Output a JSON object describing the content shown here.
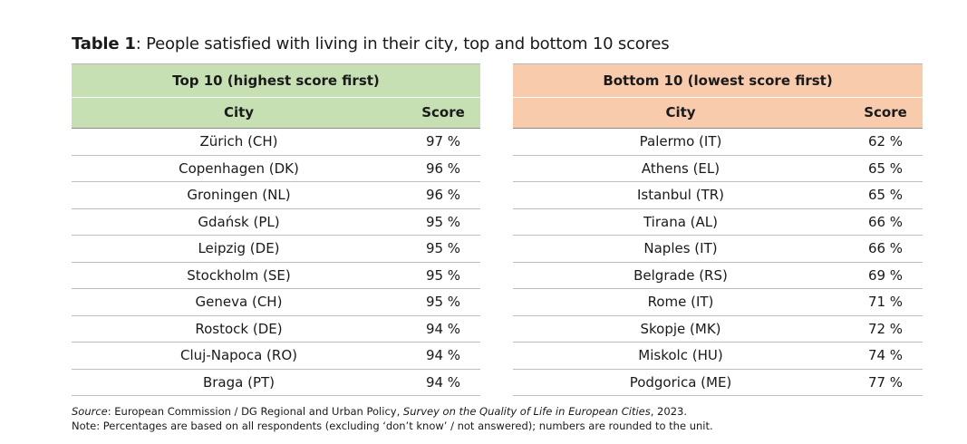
{
  "title": {
    "label": "Table 1",
    "text": ": People satisfied with living in their city, top and bottom 10 scores"
  },
  "colors": {
    "top_header_bg": "#c6e0b4",
    "bottom_header_bg": "#f8cbad"
  },
  "top": {
    "header": "Top 10 (highest score first)",
    "col_city": "City",
    "col_score": "Score",
    "rows": [
      {
        "city": "Zürich (CH)",
        "score": "97 %"
      },
      {
        "city": "Copenhagen (DK)",
        "score": "96 %"
      },
      {
        "city": "Groningen (NL)",
        "score": "96 %"
      },
      {
        "city": "Gdańsk (PL)",
        "score": "95 %"
      },
      {
        "city": "Leipzig (DE)",
        "score": "95 %"
      },
      {
        "city": "Stockholm (SE)",
        "score": "95 %"
      },
      {
        "city": "Geneva (CH)",
        "score": "95 %"
      },
      {
        "city": "Rostock (DE)",
        "score": "94 %"
      },
      {
        "city": "Cluj-Napoca (RO)",
        "score": "94 %"
      },
      {
        "city": "Braga (PT)",
        "score": "94 %"
      }
    ]
  },
  "bottom": {
    "header": "Bottom 10 (lowest score first)",
    "col_city": "City",
    "col_score": "Score",
    "rows": [
      {
        "city": "Palermo (IT)",
        "score": "62 %"
      },
      {
        "city": "Athens (EL)",
        "score": "65 %"
      },
      {
        "city": "Istanbul (TR)",
        "score": "65 %"
      },
      {
        "city": "Tirana (AL)",
        "score": "66 %"
      },
      {
        "city": "Naples (IT)",
        "score": "66 %"
      },
      {
        "city": "Belgrade (RS)",
        "score": "69 %"
      },
      {
        "city": "Rome (IT)",
        "score": "71 %"
      },
      {
        "city": "Skopje (MK)",
        "score": "72 %"
      },
      {
        "city": "Miskolc (HU)",
        "score": "74 %"
      },
      {
        "city": "Podgorica (ME)",
        "score": "77 %"
      }
    ]
  },
  "source": {
    "label": "Source",
    "text1": ": European Commission / DG Regional and Urban Policy, ",
    "survey": "Survey on the Quality of Life in European Cities",
    "text2": ", 2023."
  },
  "note": "Note: Percentages are based on all respondents (excluding ‘don’t know’ / not answered); numbers are rounded to the unit."
}
